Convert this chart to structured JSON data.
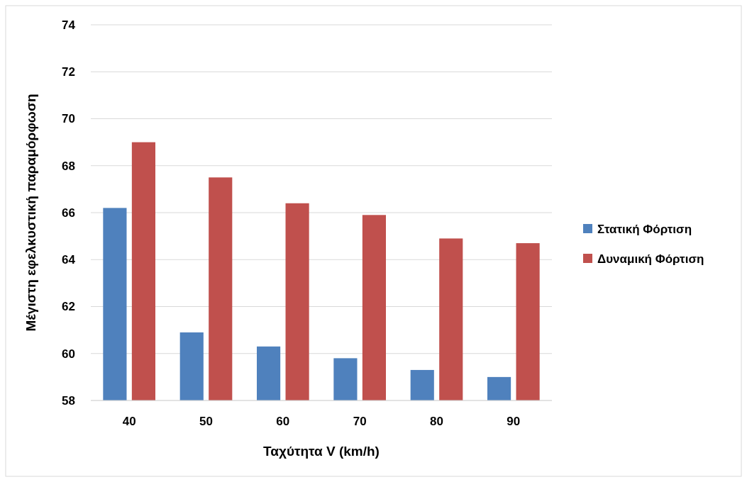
{
  "chart_data": {
    "type": "bar",
    "xlabel": "Ταχύτητα V (km/h)",
    "ylabel": "Μέγιστη εφελκυστική παραμόρφωση",
    "categories": [
      "40",
      "50",
      "60",
      "70",
      "80",
      "90"
    ],
    "series": [
      {
        "name": "Στατική Φόρτιση",
        "color": "#4f81bd",
        "values": [
          66.2,
          60.9,
          60.3,
          59.8,
          59.3,
          59.0
        ]
      },
      {
        "name": "Δυναμική Φόρτιση",
        "color": "#c0504d",
        "values": [
          69.0,
          67.5,
          66.4,
          65.9,
          64.9,
          64.7
        ]
      }
    ],
    "ylim": [
      58,
      74
    ],
    "yticks": [
      58,
      60,
      62,
      64,
      66,
      68,
      70,
      72,
      74
    ],
    "grid": "y",
    "legend": "right"
  }
}
